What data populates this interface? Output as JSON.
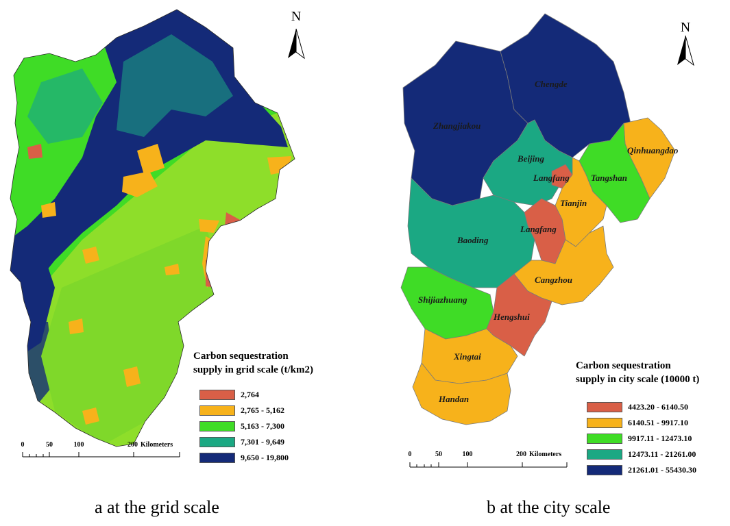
{
  "panels": {
    "a": {
      "caption": "a at the grid scale",
      "north_label": "N",
      "legend": {
        "title_line1": "Carbon sequestration",
        "title_line2": "supply in grid scale  (t/km2)",
        "items": [
          {
            "label": "2,764",
            "color": "#d95f47"
          },
          {
            "label": "2,765 - 5,162",
            "color": "#f7b21b"
          },
          {
            "label": "5,163 - 7,300",
            "color": "#3fdc26"
          },
          {
            "label": "7,301 - 9,649",
            "color": "#1ba883"
          },
          {
            "label": "9,650 - 19,800",
            "color": "#142a78"
          }
        ]
      },
      "scale": {
        "ticks": [
          "0",
          "50",
          "100",
          "200"
        ],
        "unit": "Kilometers"
      }
    },
    "b": {
      "caption": "b at the city scale",
      "north_label": "N",
      "legend": {
        "title_line1": "Carbon sequestration",
        "title_line2": "supply in city scale (10000 t)",
        "items": [
          {
            "label": "4423.20 - 6140.50",
            "color": "#d95f47"
          },
          {
            "label": "6140.51 - 9917.10",
            "color": "#f7b21b"
          },
          {
            "label": "9917.11 - 12473.10",
            "color": "#3fdc26"
          },
          {
            "label": "12473.11 - 21261.00",
            "color": "#1ba883"
          },
          {
            "label": "21261.01 - 55430.30",
            "color": "#142a78"
          }
        ]
      },
      "scale": {
        "ticks": [
          "0",
          "50",
          "100",
          "200"
        ],
        "unit": "Kilometers"
      },
      "cities": {
        "chengde": "Chengde",
        "zhangjiakou": "Zhangjiakou",
        "qinhuangdao": "Qinhuangdao",
        "beijing": "Beijing",
        "langfang_north": "Langfang",
        "tangshan": "Tangshan",
        "tianjin": "Tianjin",
        "langfang_south": "Langfang",
        "baoding": "Baoding",
        "cangzhou": "Cangzhou",
        "shijiazhuang": "Shijiazhuang",
        "hengshui": "Hengshui",
        "xingtai": "Xingtai",
        "handan": "Handan"
      }
    }
  }
}
